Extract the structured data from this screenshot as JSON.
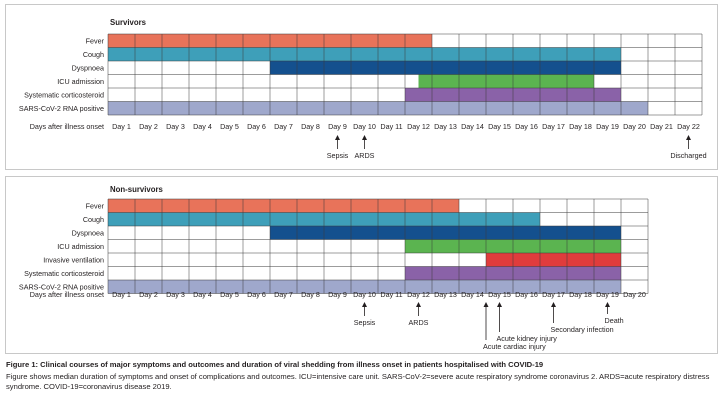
{
  "chart_data": [
    {
      "type": "gantt",
      "title": "Survivors",
      "xlabel": "Days after illness onset",
      "days": [
        "Day 1",
        "Day 2",
        "Day 3",
        "Day 4",
        "Day 5",
        "Day 6",
        "Day 7",
        "Day 8",
        "Day 9",
        "Day 10",
        "Day 11",
        "Day 12",
        "Day 13",
        "Day 14",
        "Day 15",
        "Day 16",
        "Day 17",
        "Day 18",
        "Day 19",
        "Day 20",
        "Day 21",
        "Day 22"
      ],
      "series": [
        {
          "name": "Fever",
          "start": 1,
          "end": 12,
          "color": "#e8735a"
        },
        {
          "name": "Cough",
          "start": 1,
          "end": 19,
          "color": "#3e9fb9"
        },
        {
          "name": "Dyspnoea",
          "start": 7,
          "end": 19,
          "color": "#14508e"
        },
        {
          "name": "ICU admission",
          "start": 12.5,
          "end": 18,
          "color": "#5bb450"
        },
        {
          "name": "Systematic corticosteroid",
          "start": 12,
          "end": 19,
          "color": "#8a62a8"
        },
        {
          "name": "SARS-CoV-2 RNA positive",
          "start": 1,
          "end": 20,
          "color": "#9fa8cc"
        }
      ],
      "events": [
        {
          "label": "Sepsis",
          "day": 9
        },
        {
          "label": "ARDS",
          "day": 10
        },
        {
          "label": "Discharged",
          "day": 22
        }
      ]
    },
    {
      "type": "gantt",
      "title": "Non-survivors",
      "xlabel": "Days after illness onset",
      "days": [
        "Day 1",
        "Day 2",
        "Day 3",
        "Day 4",
        "Day 5",
        "Day 6",
        "Day 7",
        "Day 8",
        "Day 9",
        "Day 10",
        "Day 11",
        "Day 12",
        "Day 13",
        "Day 14",
        "Day 15",
        "Day 16",
        "Day 17",
        "Day 18",
        "Day 19",
        "Day 20"
      ],
      "series": [
        {
          "name": "Fever",
          "start": 1,
          "end": 13,
          "color": "#e8735a"
        },
        {
          "name": "Cough",
          "start": 1,
          "end": 16,
          "color": "#3e9fb9"
        },
        {
          "name": "Dyspnoea",
          "start": 7,
          "end": 19,
          "color": "#14508e"
        },
        {
          "name": "ICU admission",
          "start": 12,
          "end": 19,
          "color": "#5bb450"
        },
        {
          "name": "Invasive ventilation",
          "start": 15,
          "end": 19,
          "color": "#e03c3c"
        },
        {
          "name": "Systematic corticosteroid",
          "start": 12,
          "end": 19,
          "color": "#8a62a8"
        },
        {
          "name": "SARS-CoV-2 RNA positive",
          "start": 1,
          "end": 19,
          "color": "#9fa8cc"
        }
      ],
      "events": [
        {
          "label": "Sepsis",
          "day": 10
        },
        {
          "label": "ARDS",
          "day": 12
        },
        {
          "label": "Acute cardiac injury",
          "day": 14.5
        },
        {
          "label": "Acute kidney injury",
          "day": 15
        },
        {
          "label": "Secondary infection",
          "day": 17
        },
        {
          "label": "Death",
          "day": 19
        }
      ]
    }
  ],
  "caption": {
    "title": "Figure 1: Clinical courses of major symptoms and outcomes and duration of viral shedding from illness onset in patients hospitalised with COVID-19",
    "body": "Figure shows median duration of symptoms and onset of complications and outcomes. ICU=intensive care unit. SARS-CoV-2=severe acute respiratory syndrome coronavirus 2. ARDS=acute respiratory distress syndrome. COVID-19=coronavirus disease 2019."
  }
}
